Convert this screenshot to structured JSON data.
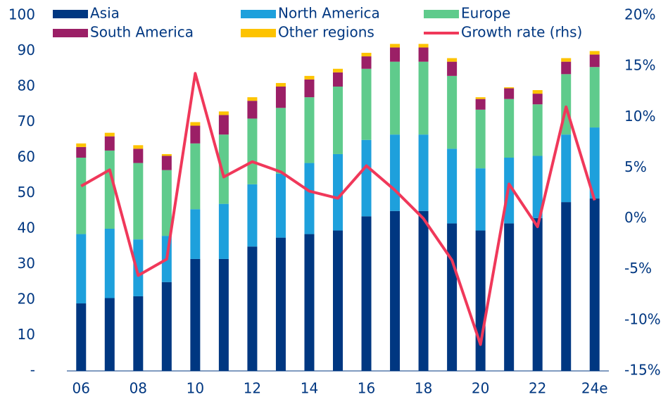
{
  "chart_data": {
    "type": "bar",
    "stacked": true,
    "legend": "top-left",
    "categories": [
      "06",
      null,
      "08",
      null,
      "10",
      null,
      "12",
      null,
      "14",
      null,
      "16",
      null,
      "18",
      null,
      "20",
      null,
      "22",
      null,
      "24e"
    ],
    "ylim": [
      0,
      100
    ],
    "yticks": [
      {
        "value": 0,
        "label": "-"
      },
      10,
      20,
      30,
      40,
      50,
      60,
      70,
      80,
      90,
      100
    ],
    "y2lim": [
      -15,
      20
    ],
    "y2ticks": [
      {
        "value": -15,
        "label": "-15%"
      },
      {
        "value": -10,
        "label": "-10%"
      },
      {
        "value": -5,
        "label": "-5%"
      },
      {
        "value": 0,
        "label": "0%"
      },
      {
        "value": 5,
        "label": "5%"
      },
      {
        "value": 10,
        "label": "10%"
      },
      {
        "value": 15,
        "label": "15%"
      },
      {
        "value": 20,
        "label": "20%"
      }
    ],
    "series": [
      {
        "name": "Asia",
        "color": "#003781",
        "values": [
          19,
          20.5,
          21,
          25,
          31.5,
          31.5,
          35,
          37.5,
          38.5,
          39.5,
          43.5,
          45,
          45,
          41.5,
          39.5,
          41.5,
          43,
          47.5,
          48.5
        ]
      },
      {
        "name": "North America",
        "color": "#1ea0dc",
        "values": [
          19.5,
          19.5,
          16,
          13,
          14,
          15.5,
          17.5,
          18,
          20,
          21.5,
          21.5,
          21.5,
          21.5,
          21,
          17.5,
          18.5,
          17.5,
          19,
          20
        ]
      },
      {
        "name": "Europe",
        "color": "#5fcb8c",
        "values": [
          21.5,
          22,
          21.5,
          18.5,
          18.5,
          19.5,
          18.5,
          18.5,
          18.5,
          19,
          20,
          20.5,
          20.5,
          20.5,
          16.5,
          16.5,
          14.5,
          17,
          17
        ]
      },
      {
        "name": "South America",
        "color": "#9b1f66",
        "values": [
          3,
          4,
          4,
          4,
          5,
          5.5,
          5,
          6,
          5,
          4,
          3.5,
          4,
          4,
          4,
          3,
          3,
          3,
          3.5,
          3.5
        ]
      },
      {
        "name": "Other regions",
        "color": "#fdc300",
        "values": [
          1,
          1,
          1,
          0.5,
          1,
          1,
          1,
          1,
          1,
          1,
          1,
          1,
          1,
          1,
          0.5,
          0.3,
          1,
          1,
          1
        ]
      },
      {
        "name": "Growth rate (rhs)",
        "color": "#f0385a",
        "type": "line",
        "axis": "y2",
        "values": [
          3.2,
          4.8,
          -5.6,
          -4,
          14.3,
          4.1,
          5.6,
          4.6,
          2.7,
          2,
          5.2,
          2.8,
          0,
          -4.1,
          -12.4,
          3.4,
          -0.8,
          11,
          1.8
        ]
      }
    ]
  }
}
